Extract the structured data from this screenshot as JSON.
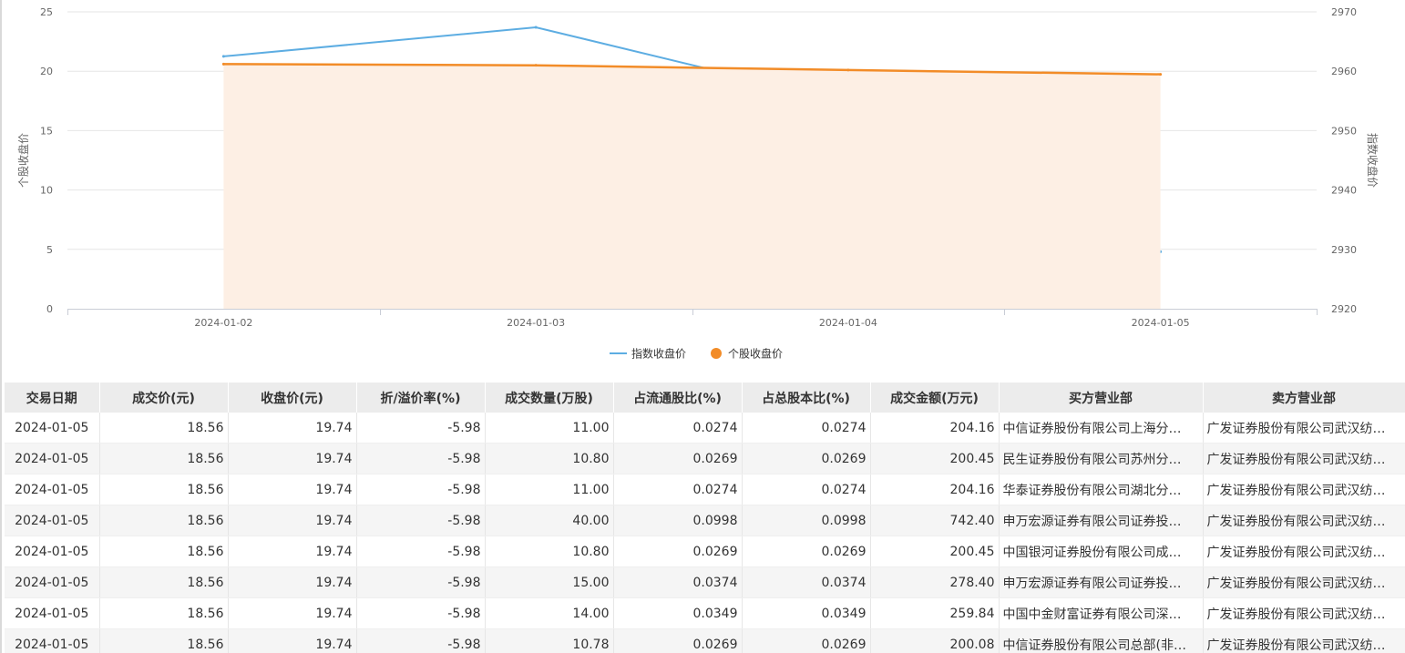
{
  "chart_data": {
    "type": "line",
    "categories": [
      "2024-01-02",
      "2024-01-03",
      "2024-01-04",
      "2024-01-05"
    ],
    "series": [
      {
        "name": "指数收盘价",
        "axis": "right",
        "color": "#5dade2",
        "style": "line",
        "values": [
          2962.5,
          2967.4,
          2954.7,
          2929.6
        ]
      },
      {
        "name": "个股收盘价",
        "axis": "left",
        "color": "#f28c28",
        "style": "area",
        "fill": "#fdefe4",
        "values": [
          20.6,
          20.5,
          20.1,
          19.74
        ]
      }
    ],
    "y_left": {
      "label": "个股收盘价",
      "min": 0,
      "max": 25,
      "ticks": [
        "0",
        "5",
        "10",
        "15",
        "20",
        "25"
      ]
    },
    "y_right": {
      "label": "指数收盘价",
      "min": 2920,
      "max": 2970,
      "ticks": [
        "2920",
        "2930",
        "2940",
        "2950",
        "2960",
        "2970"
      ]
    },
    "grid": true,
    "legend_position": "bottom-center"
  },
  "table": {
    "headers": [
      "交易日期",
      "成交价(元)",
      "收盘价(元)",
      "折/溢价率(%)",
      "成交数量(万股)",
      "占流通股比(%)",
      "占总股本比(%)",
      "成交金额(万元)",
      "买方营业部",
      "卖方营业部"
    ],
    "rows": [
      [
        "2024-01-05",
        "18.56",
        "19.74",
        "-5.98",
        "11.00",
        "0.0274",
        "0.0274",
        "204.16",
        "中信证券股份有限公司上海分…",
        "广发证券股份有限公司武汉纺…"
      ],
      [
        "2024-01-05",
        "18.56",
        "19.74",
        "-5.98",
        "10.80",
        "0.0269",
        "0.0269",
        "200.45",
        "民生证券股份有限公司苏州分…",
        "广发证券股份有限公司武汉纺…"
      ],
      [
        "2024-01-05",
        "18.56",
        "19.74",
        "-5.98",
        "11.00",
        "0.0274",
        "0.0274",
        "204.16",
        "华泰证券股份有限公司湖北分…",
        "广发证券股份有限公司武汉纺…"
      ],
      [
        "2024-01-05",
        "18.56",
        "19.74",
        "-5.98",
        "40.00",
        "0.0998",
        "0.0998",
        "742.40",
        "申万宏源证券有限公司证券投…",
        "广发证券股份有限公司武汉纺…"
      ],
      [
        "2024-01-05",
        "18.56",
        "19.74",
        "-5.98",
        "10.80",
        "0.0269",
        "0.0269",
        "200.45",
        "中国银河证券股份有限公司成…",
        "广发证券股份有限公司武汉纺…"
      ],
      [
        "2024-01-05",
        "18.56",
        "19.74",
        "-5.98",
        "15.00",
        "0.0374",
        "0.0374",
        "278.40",
        "申万宏源证券有限公司证券投…",
        "广发证券股份有限公司武汉纺…"
      ],
      [
        "2024-01-05",
        "18.56",
        "19.74",
        "-5.98",
        "14.00",
        "0.0349",
        "0.0349",
        "259.84",
        "中国中金财富证券有限公司深…",
        "广发证券股份有限公司武汉纺…"
      ],
      [
        "2024-01-05",
        "18.56",
        "19.74",
        "-5.98",
        "10.78",
        "0.0269",
        "0.0269",
        "200.08",
        "中信证券股份有限公司总部(非…",
        "广发证券股份有限公司武汉纺…"
      ]
    ]
  }
}
